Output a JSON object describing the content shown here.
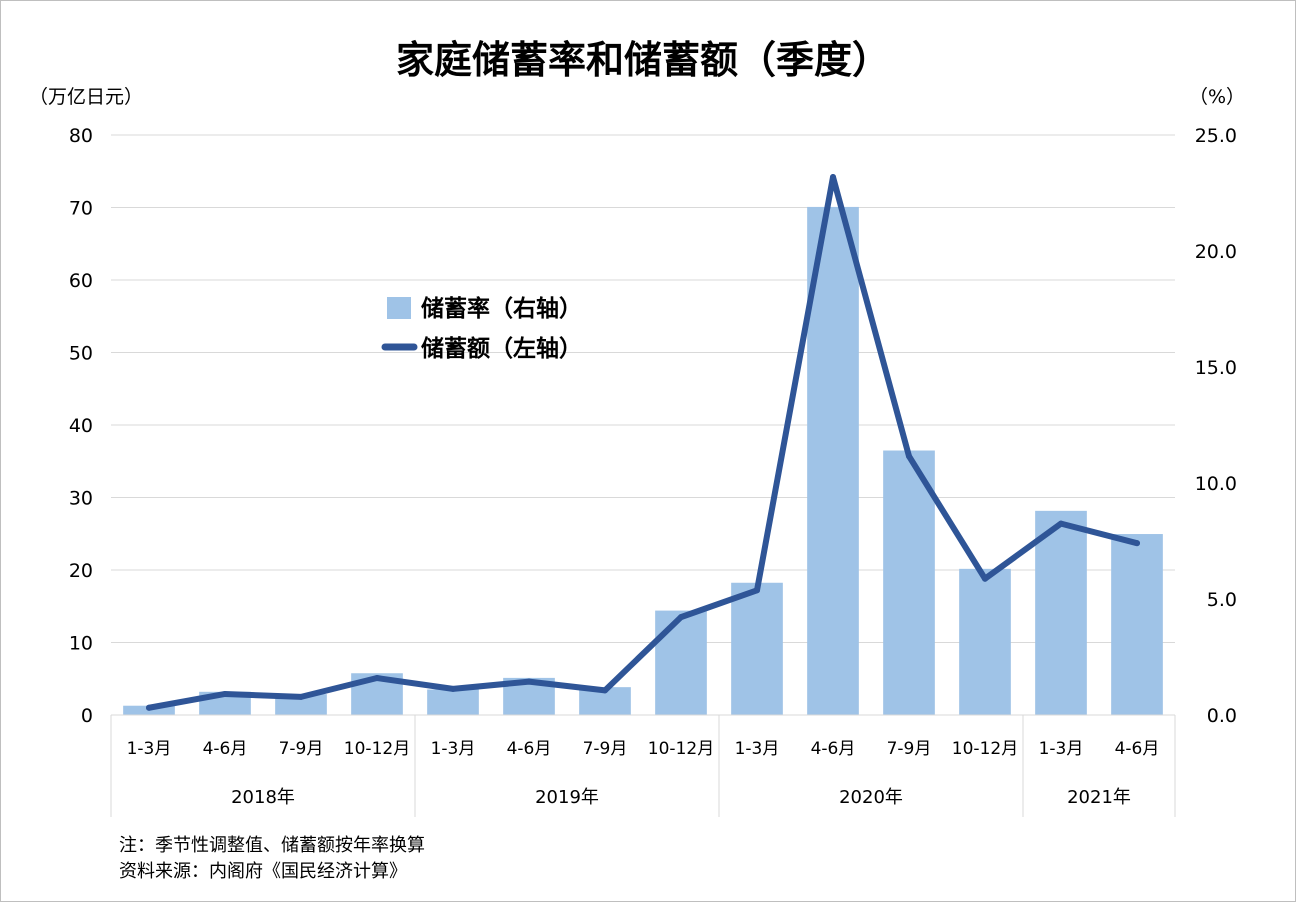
{
  "chart_data": {
    "type": "bar+line",
    "title": "家庭储蓄率和储蓄额（季度）",
    "left_axis": {
      "unit": "（万亿日元）",
      "ticks": [
        "0",
        "10",
        "20",
        "30",
        "40",
        "50",
        "60",
        "70",
        "80"
      ],
      "min": 0,
      "max": 80
    },
    "right_axis": {
      "unit": "（%）",
      "ticks": [
        "0.0",
        "5.0",
        "10.0",
        "15.0",
        "20.0",
        "25.0"
      ],
      "min": 0,
      "max": 25
    },
    "categories": [
      "1-3月",
      "4-6月",
      "7-9月",
      "10-12月",
      "1-3月",
      "4-6月",
      "7-9月",
      "10-12月",
      "1-3月",
      "4-6月",
      "7-9月",
      "10-12月",
      "1-3月",
      "4-6月"
    ],
    "year_groups": [
      {
        "label": "2018年",
        "count": 4
      },
      {
        "label": "2019年",
        "count": 4
      },
      {
        "label": "2020年",
        "count": 4
      },
      {
        "label": "2021年",
        "count": 2
      }
    ],
    "series": [
      {
        "name": "储蓄率（右轴）",
        "type": "bar",
        "axis": "right",
        "color": "#9fc3e7",
        "values": [
          0.4,
          1.0,
          0.9,
          1.8,
          1.1,
          1.6,
          1.2,
          4.5,
          5.7,
          21.9,
          11.4,
          6.3,
          8.8,
          7.8
        ]
      },
      {
        "name": "储蓄额（左轴）",
        "type": "line",
        "axis": "left",
        "color": "#2f5597",
        "values": [
          1.0,
          2.9,
          2.5,
          5.1,
          3.6,
          4.6,
          3.4,
          13.5,
          17.2,
          74.2,
          35.7,
          18.8,
          26.4,
          23.7
        ]
      }
    ],
    "legend_position": "upper-left"
  },
  "notes": [
    "注：季节性调整值、储蓄额按年率换算",
    "资料来源：内阁府《国民经济计算》"
  ]
}
